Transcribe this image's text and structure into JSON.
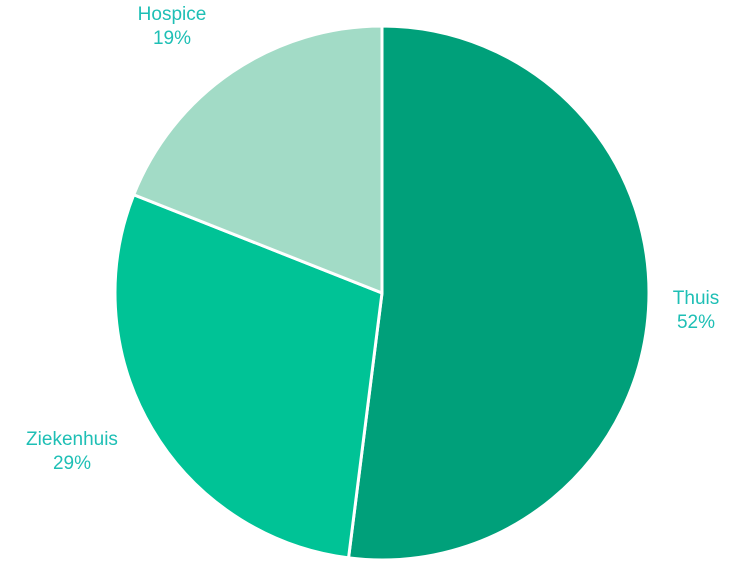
{
  "chart_data": {
    "type": "pie",
    "title": "",
    "slices": [
      {
        "label": "Thuis",
        "value": 52,
        "value_label": "52%",
        "color": "#00a07a"
      },
      {
        "label": "Ziekenhuis",
        "value": 29,
        "value_label": "29%",
        "color": "#00c396"
      },
      {
        "label": "Hospice",
        "value": 19,
        "value_label": "19%",
        "color": "#a2dbc6"
      }
    ],
    "start_angle_deg": 0,
    "direction": "clockwise",
    "label_color": "#1ebfb5",
    "separator_color": "#ffffff",
    "legend": "none"
  }
}
